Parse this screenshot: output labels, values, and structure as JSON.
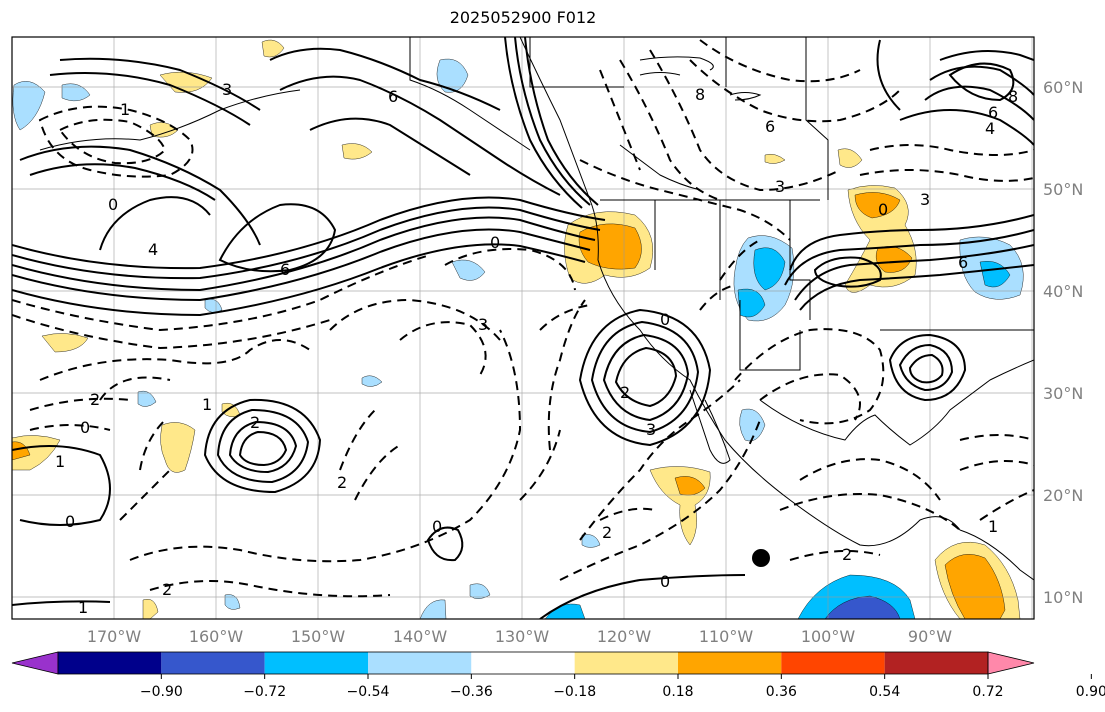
{
  "title": "2025052900 F012",
  "lat_labels": [
    "60°N",
    "50°N",
    "40°N",
    "30°N",
    "20°N",
    "10°N"
  ],
  "lon_labels": [
    "170°W",
    "160°W",
    "150°W",
    "140°W",
    "130°W",
    "120°W",
    "110°W",
    "100°W",
    "90°W"
  ],
  "colorbar": {
    "colors": [
      "#9932cc",
      "#00008b",
      "#3657cc",
      "#00bfff",
      "#aadfff",
      "#ffffff",
      "#ffe88a",
      "#ffa500",
      "#ff4500",
      "#b22222",
      "#ff88aa"
    ],
    "tick_labels": [
      "−0.90",
      "−0.72",
      "−0.54",
      "−0.36",
      "−0.18",
      "0.18",
      "0.36",
      "0.54",
      "0.72",
      "0.90"
    ]
  },
  "contour_labels": [
    "3",
    "6",
    "8",
    "6",
    "0",
    "3",
    "4",
    "6",
    "0",
    "0",
    "3",
    "2",
    "1",
    "0",
    "1",
    "2",
    "2",
    "0",
    "2",
    "3",
    "2",
    "0",
    "2",
    "8",
    "6",
    "4",
    "6",
    "0",
    "3",
    "1",
    "0",
    "1",
    "2",
    "1"
  ],
  "marker": "station-dot"
}
